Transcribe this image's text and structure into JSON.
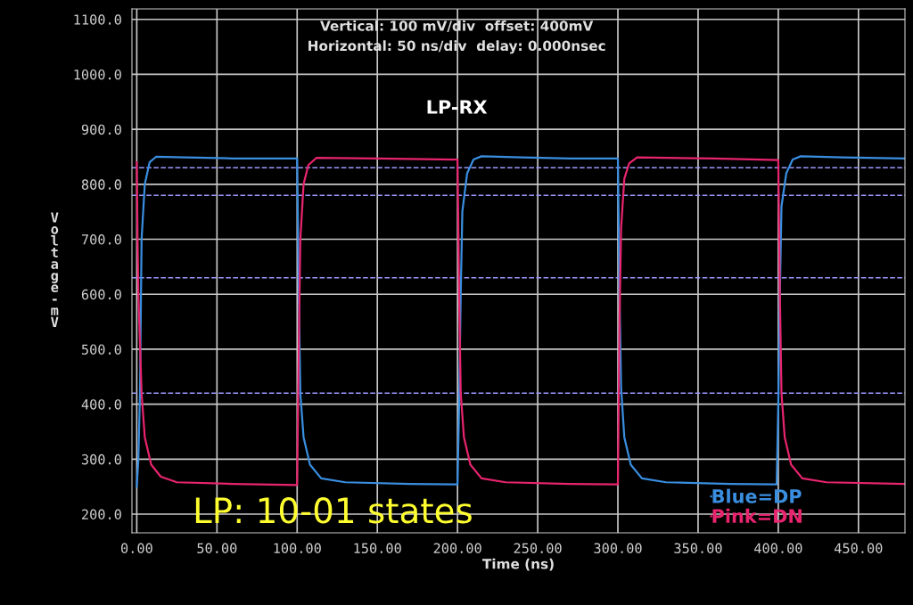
{
  "chart_data": {
    "type": "line",
    "title": "LP-RX",
    "xlabel": "Time (ns)",
    "ylabel": "Voltage-mV",
    "annotations": [
      "Vertical: 100 mV/div  offset: 400mV",
      "Horizontal: 50 ns/div  delay: 0.000nsec",
      "LP: 10-01 states"
    ],
    "xlim": [
      -3,
      479
    ],
    "ylim": [
      166,
      1119
    ],
    "xticks": [
      {
        "value": 0,
        "label": "0.00"
      },
      {
        "value": 50,
        "label": "50.00"
      },
      {
        "value": 100,
        "label": "100.00"
      },
      {
        "value": 150,
        "label": "150.00"
      },
      {
        "value": 200,
        "label": "200.00"
      },
      {
        "value": 250,
        "label": "250.00"
      },
      {
        "value": 300,
        "label": "300.00"
      },
      {
        "value": 350,
        "label": "350.00"
      },
      {
        "value": 400,
        "label": "400.00"
      },
      {
        "value": 450,
        "label": "450.00"
      }
    ],
    "yticks": [
      {
        "value": 200,
        "label": "200.0"
      },
      {
        "value": 300,
        "label": "300.0"
      },
      {
        "value": 400,
        "label": "400.0"
      },
      {
        "value": 500,
        "label": "500.0"
      },
      {
        "value": 600,
        "label": "600.0"
      },
      {
        "value": 700,
        "label": "700.0"
      },
      {
        "value": 800,
        "label": "800.0"
      },
      {
        "value": 900,
        "label": "900.0"
      },
      {
        "value": 1000,
        "label": "1000.0"
      },
      {
        "value": 1100,
        "label": "1100.0"
      }
    ],
    "grid": true,
    "legend": "bottom right",
    "marker": "none",
    "line_style": "solid",
    "ref_lines": [
      {
        "axis": "y",
        "value": 830,
        "label": null,
        "color": "#9a9aff",
        "line_style": "dashed"
      },
      {
        "axis": "y",
        "value": 780,
        "label": null,
        "color": "#9a9aff",
        "line_style": "dashed"
      },
      {
        "axis": "y",
        "value": 630,
        "label": null,
        "color": "#9a9aff",
        "line_style": "dashed"
      },
      {
        "axis": "y",
        "value": 420,
        "label": null,
        "color": "#9a9aff",
        "line_style": "dashed"
      }
    ],
    "series": [
      {
        "name": "Blue=DP",
        "color": "#3a8ee0",
        "x": [
          0,
          1,
          2,
          3,
          5,
          8,
          12,
          30,
          60,
          100,
          101,
          102,
          104,
          108,
          115,
          130,
          170,
          200,
          201,
          202,
          203,
          206,
          210,
          215,
          240,
          270,
          300,
          301,
          302,
          304,
          308,
          315,
          330,
          370,
          399,
          400,
          401,
          402,
          405,
          409,
          414,
          440,
          479
        ],
        "values": [
          250,
          300,
          420,
          700,
          800,
          840,
          850,
          849,
          847,
          847,
          600,
          420,
          340,
          290,
          265,
          258,
          255,
          254,
          400,
          600,
          750,
          820,
          845,
          851,
          849,
          847,
          847,
          600,
          430,
          340,
          290,
          265,
          258,
          255,
          254,
          400,
          600,
          760,
          820,
          845,
          851,
          849,
          847
        ]
      },
      {
        "name": "Pink=DN",
        "color": "#e8246e",
        "x": [
          0,
          0.5,
          1,
          3,
          5,
          9,
          15,
          25,
          60,
          100,
          101,
          102,
          104,
          107,
          112,
          150,
          200,
          201,
          202,
          204,
          208,
          215,
          230,
          270,
          300,
          301,
          302,
          304,
          307,
          312,
          360,
          400,
          401,
          402,
          404,
          408,
          415,
          430,
          479
        ],
        "values": [
          840,
          700,
          600,
          420,
          340,
          290,
          268,
          258,
          255,
          253,
          500,
          700,
          800,
          835,
          848,
          847,
          845,
          600,
          420,
          340,
          290,
          265,
          258,
          255,
          254,
          550,
          720,
          810,
          838,
          849,
          847,
          844,
          600,
          420,
          340,
          290,
          265,
          258,
          255
        ]
      }
    ]
  }
}
